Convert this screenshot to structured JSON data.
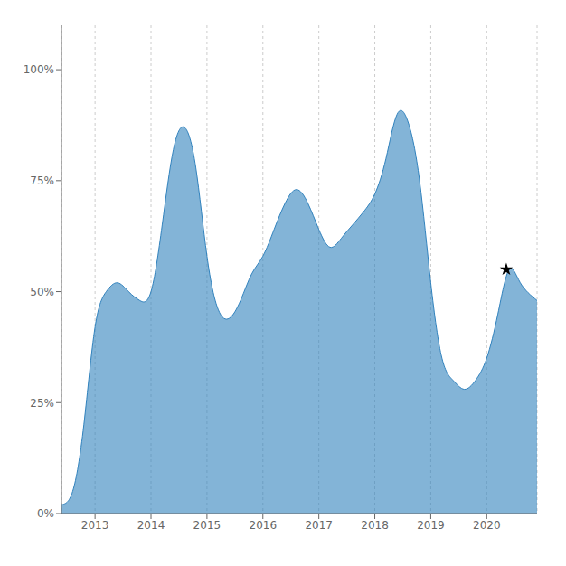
{
  "chart_data": {
    "type": "area",
    "series": [
      {
        "type": "area",
        "x": [
          2012.4,
          2012.6,
          2012.8,
          2013.0,
          2013.2,
          2013.4,
          2013.6,
          2013.8,
          2014.0,
          2014.2,
          2014.4,
          2014.6,
          2014.8,
          2015.0,
          2015.2,
          2015.4,
          2015.6,
          2015.8,
          2016.0,
          2016.2,
          2016.4,
          2016.6,
          2016.8,
          2017.0,
          2017.2,
          2017.4,
          2017.6,
          2017.8,
          2018.0,
          2018.2,
          2018.4,
          2018.6,
          2018.8,
          2019.0,
          2019.2,
          2019.4,
          2019.6,
          2019.8,
          2020.0,
          2020.2,
          2020.4,
          2020.6,
          2020.9
        ],
        "values": [
          2,
          5,
          20,
          42,
          50,
          52,
          50,
          48,
          50,
          65,
          82,
          87,
          78,
          58,
          46,
          44,
          48,
          54,
          58,
          64,
          70,
          73,
          70,
          64,
          60,
          62,
          65,
          68,
          72,
          80,
          90,
          88,
          75,
          52,
          35,
          30,
          28,
          30,
          35,
          45,
          55,
          52,
          48
        ]
      },
      {
        "type": "scatter",
        "marker": "star",
        "x": [
          2020.35
        ],
        "values": [
          55
        ]
      }
    ],
    "xlim": [
      2012.4,
      2020.9
    ],
    "xticks": [
      2013,
      2014,
      2015,
      2016,
      2017,
      2018,
      2019,
      2020
    ],
    "ylim": [
      0,
      110
    ],
    "yticks": [
      {
        "value": 0,
        "label": "0%"
      },
      {
        "value": 25,
        "label": "25%"
      },
      {
        "value": 50,
        "label": "50%"
      },
      {
        "value": 75,
        "label": "75%"
      },
      {
        "value": 100,
        "label": "100%"
      }
    ],
    "grid": "x"
  }
}
